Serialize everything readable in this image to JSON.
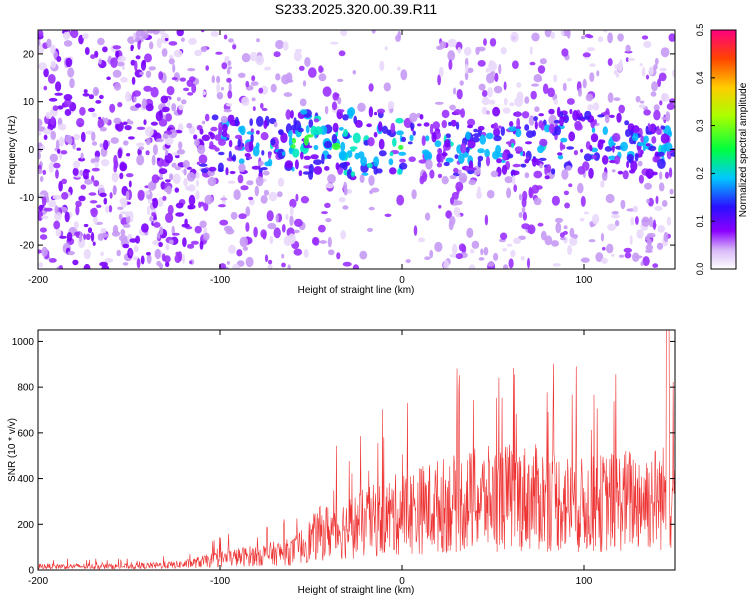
{
  "title": "S233.2025.320.00.39.R11",
  "chart_data": [
    {
      "type": "heatmap",
      "xlabel": "Height of straight line (km)",
      "ylabel": "Frequency (Hz)",
      "xlim": [
        -200,
        150
      ],
      "ylim": [
        -25,
        25
      ],
      "xticks": [
        -200,
        -100,
        0,
        100
      ],
      "yticks": [
        -20,
        -10,
        0,
        10,
        20
      ],
      "colorbar": {
        "label": "Normalized spectral amplitude",
        "range": [
          0.0,
          0.5
        ],
        "ticks": [
          "0.0",
          "0.1",
          "0.2",
          "0.3",
          "0.4",
          "0.5"
        ]
      },
      "features": {
        "broadband_noise_region_km": [
          -200,
          -110
        ],
        "signal_band_center_hz": 1,
        "signal_band_halfwidth_hz": 7,
        "peak_region_km": [
          -60,
          0
        ]
      }
    },
    {
      "type": "line",
      "xlabel": "Height of straight line (km)",
      "ylabel": "SNR (10 * v/v)",
      "xlim": [
        -200,
        150
      ],
      "ylim": [
        0,
        1050
      ],
      "xticks": [
        -200,
        -100,
        0,
        100
      ],
      "yticks": [
        0,
        200,
        400,
        600,
        800,
        1000
      ],
      "series_color": "#ee3333",
      "envelope": [
        {
          "x": -200,
          "y": 20
        },
        {
          "x": -150,
          "y": 20
        },
        {
          "x": -120,
          "y": 30
        },
        {
          "x": -100,
          "y": 60
        },
        {
          "x": -80,
          "y": 80
        },
        {
          "x": -60,
          "y": 100
        },
        {
          "x": -45,
          "y": 200
        },
        {
          "x": -30,
          "y": 230
        },
        {
          "x": -15,
          "y": 270
        },
        {
          "x": 0,
          "y": 310
        },
        {
          "x": 20,
          "y": 350
        },
        {
          "x": 40,
          "y": 380
        },
        {
          "x": 60,
          "y": 400
        },
        {
          "x": 80,
          "y": 390
        },
        {
          "x": 100,
          "y": 350
        },
        {
          "x": 120,
          "y": 380
        },
        {
          "x": 150,
          "y": 400
        }
      ],
      "max_value": 1050
    }
  ]
}
